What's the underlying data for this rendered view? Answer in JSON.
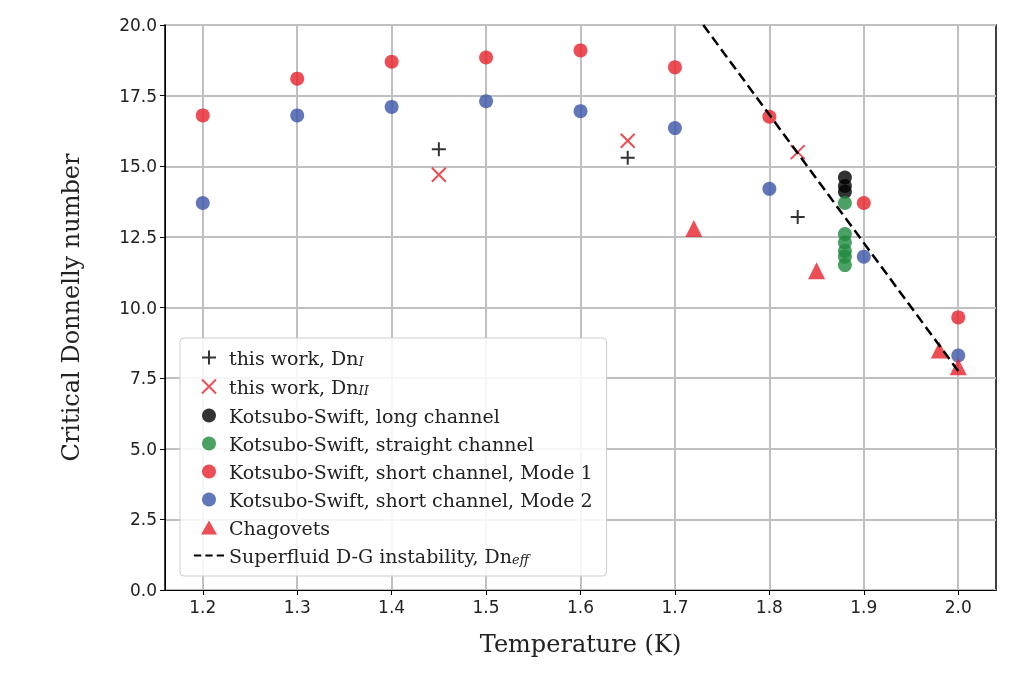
{
  "chart_data": {
    "type": "scatter",
    "xlabel": "Temperature (K)",
    "ylabel": "Critical Donnelly number",
    "xlim": [
      1.16,
      2.04
    ],
    "xticks": [
      {
        "value": 1.2,
        "label": "1.2"
      },
      {
        "value": 1.3,
        "label": "1.3"
      },
      {
        "value": 1.4,
        "label": "1.4"
      },
      {
        "value": 1.5,
        "label": "1.5"
      },
      {
        "value": 1.6,
        "label": "1.6"
      },
      {
        "value": 1.7,
        "label": "1.7"
      },
      {
        "value": 1.8,
        "label": "1.8"
      },
      {
        "value": 1.9,
        "label": "1.9"
      },
      {
        "value": 2.0,
        "label": "2.0"
      }
    ],
    "ylim": [
      0,
      20
    ],
    "yticks": [
      {
        "value": 0,
        "label": "0.0"
      },
      {
        "value": 2.5,
        "label": "2.5"
      },
      {
        "value": 5,
        "label": "5.0"
      },
      {
        "value": 7.5,
        "label": "7.5"
      },
      {
        "value": 10,
        "label": "10.0"
      },
      {
        "value": 12.5,
        "label": "12.5"
      },
      {
        "value": 15,
        "label": "15.0"
      },
      {
        "value": 17.5,
        "label": "17.5"
      },
      {
        "value": 20,
        "label": "20.0"
      }
    ],
    "grid": true,
    "legend": "bottom left",
    "series": [
      {
        "name": "this work, Dn$_{I}$",
        "color": "#000000",
        "marker": "cross",
        "x": [
          1.45,
          1.65,
          1.83
        ],
        "values": [
          15.6,
          15.3,
          13.2
        ]
      },
      {
        "name": "this work, Dn$_{II}$",
        "color": "#e8202a",
        "marker": "x",
        "x": [
          1.45,
          1.65,
          1.83
        ],
        "values": [
          14.7,
          15.9,
          15.5
        ]
      },
      {
        "name": "Kotsubo-Swift, long channel",
        "color": "#000000",
        "marker": "circle",
        "x": [
          1.88,
          1.88,
          1.88
        ],
        "values": [
          14.6,
          14.3,
          14.1
        ]
      },
      {
        "name": "Kotsubo-Swift, straight channel",
        "color": "#1e8a3c",
        "marker": "circle",
        "x": [
          1.88,
          1.88,
          1.88,
          1.88,
          1.88,
          1.88
        ],
        "values": [
          13.7,
          12.6,
          12.3,
          12.0,
          11.8,
          11.5
        ]
      },
      {
        "name": "Kotsubo-Swift, short channel, Mode 1",
        "color": "#e8202a",
        "marker": "circle",
        "x": [
          1.2,
          1.3,
          1.4,
          1.5,
          1.6,
          1.7,
          1.8,
          1.9,
          2.0
        ],
        "values": [
          16.8,
          18.1,
          18.7,
          18.85,
          19.1,
          18.5,
          16.75,
          13.7,
          9.65
        ]
      },
      {
        "name": "Kotsubo-Swift, short channel, Mode 2",
        "color": "#3a55a8",
        "marker": "circle",
        "x": [
          1.2,
          1.3,
          1.4,
          1.5,
          1.6,
          1.7,
          1.8,
          1.9,
          2.0
        ],
        "values": [
          13.7,
          16.8,
          17.1,
          17.3,
          16.95,
          16.35,
          14.2,
          11.8,
          8.3
        ]
      },
      {
        "name": "Chagovets",
        "color": "#e8202a",
        "marker": "triangle",
        "x": [
          1.72,
          1.85,
          1.98,
          2.0
        ],
        "values": [
          12.8,
          11.3,
          8.5,
          7.9
        ]
      },
      {
        "name": "Superfluid D-G instability, Dn$_{eff}$",
        "type": "line",
        "color": "#000000",
        "marker": "none",
        "line_style": "dashed",
        "x": [
          1.73,
          2.0
        ],
        "values": [
          20,
          7.75
        ]
      }
    ]
  }
}
